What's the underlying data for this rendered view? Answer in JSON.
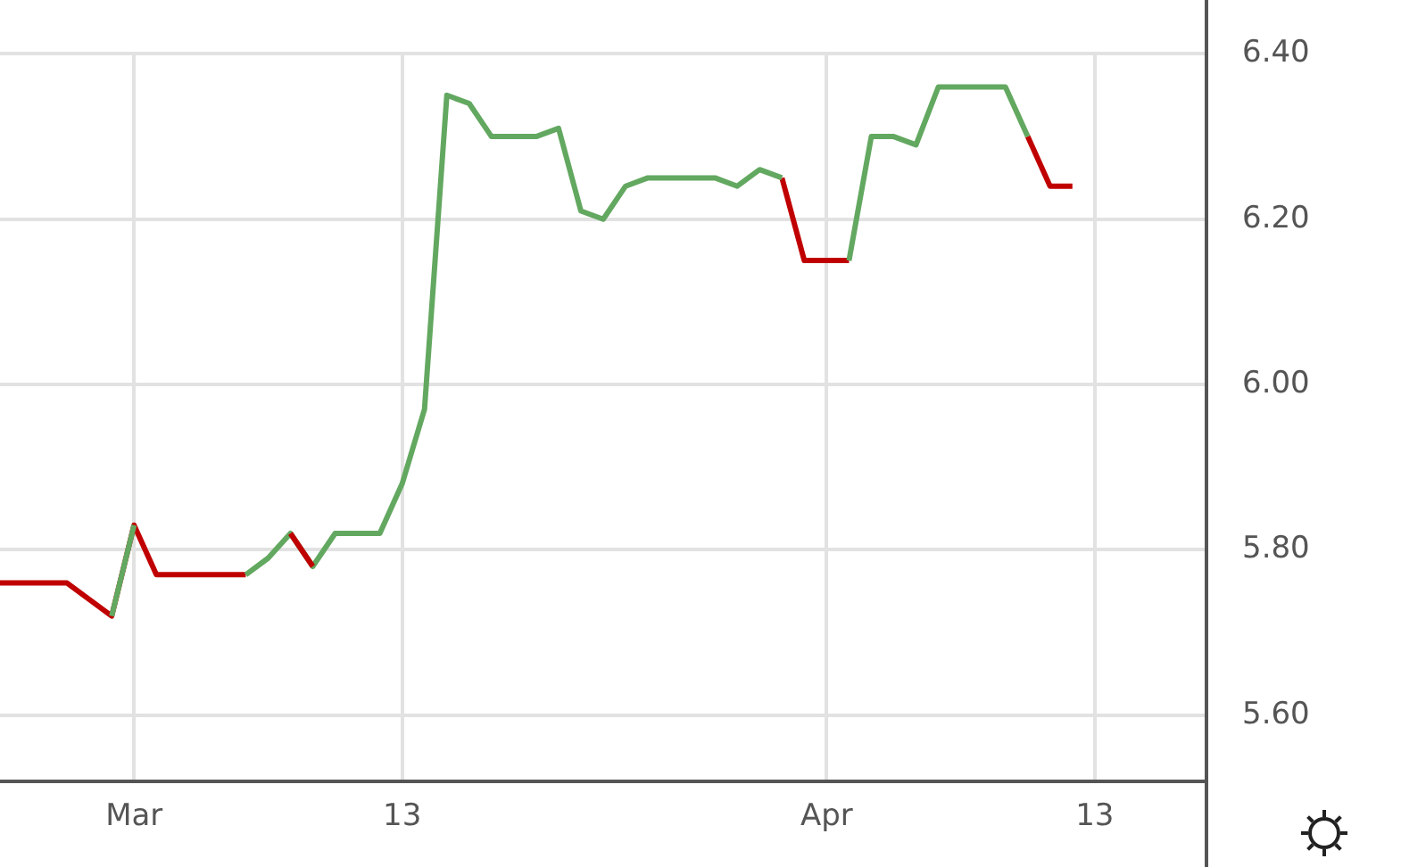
{
  "chart_data": {
    "type": "line",
    "x": [
      "--02-23",
      "--02-24",
      "--02-26",
      "--02-27",
      "--02-28",
      "--03-01",
      "--03-02",
      "--03-03",
      "--03-05",
      "--03-06",
      "--03-07",
      "--03-08",
      "--03-09",
      "--03-10",
      "--03-12",
      "--03-13",
      "--03-14",
      "--03-15",
      "--03-16",
      "--03-17",
      "--03-19",
      "--03-20",
      "--03-21",
      "--03-22",
      "--03-23",
      "--03-24",
      "--03-26",
      "--03-27",
      "--03-28",
      "--03-29",
      "--03-30",
      "--03-31",
      "--04-02",
      "--04-03",
      "--04-04",
      "--04-05",
      "--04-06",
      "--04-09",
      "--04-10",
      "--04-11",
      "--04-12"
    ],
    "series": [
      {
        "color": "#c00000",
        "values": [
          null,
          null,
          null,
          null,
          null,
          null,
          null,
          null,
          null,
          null,
          null,
          5.82,
          5.78,
          null,
          null,
          null,
          null,
          null,
          null,
          null,
          null,
          null,
          null,
          null,
          null,
          null,
          null,
          null,
          null,
          null,
          null,
          null,
          null,
          null,
          null,
          null,
          null,
          null,
          null,
          null,
          null
        ]
      },
      {
        "color": "#63a860",
        "values": [
          null,
          null,
          null,
          null,
          5.72,
          5.83,
          null,
          null,
          null,
          5.77,
          5.79,
          5.82,
          5.78,
          5.82,
          5.82,
          5.88,
          5.97,
          6.35,
          6.34,
          6.3,
          6.3,
          6.31,
          6.21,
          6.2,
          6.24,
          6.25,
          6.25,
          6.25,
          6.24,
          6.26,
          6.25,
          null,
          6.15,
          6.3,
          6.3,
          6.29,
          6.36,
          6.36,
          6.3,
          null,
          null
        ]
      },
      {
        "color": "#c00000",
        "values": [
          5.76,
          5.76,
          5.76,
          5.74,
          5.72,
          5.83,
          5.77,
          5.77,
          5.77,
          5.77,
          null,
          null,
          null,
          null,
          null,
          null,
          null,
          null,
          null,
          null,
          null,
          null,
          null,
          null,
          null,
          null,
          null,
          null,
          null,
          null,
          6.25,
          6.15,
          6.15,
          null,
          null,
          null,
          null,
          null,
          6.3,
          6.24,
          6.24
        ]
      }
    ],
    "xlim": [
      "--02-23",
      "--04-18"
    ],
    "xticks": [
      {
        "value": "--03-01",
        "label": "Mar"
      },
      {
        "value": "--03-13",
        "label": "13"
      },
      {
        "value": "--04-01",
        "label": "Apr"
      },
      {
        "value": "--04-13",
        "label": "13"
      }
    ],
    "ylim": [
      5.52,
      6.4
    ],
    "yticks": [
      {
        "value": 5.6,
        "label": "5.60"
      },
      {
        "value": 5.8,
        "label": "5.80"
      },
      {
        "value": 6.0,
        "label": "6.00"
      },
      {
        "value": 6.2,
        "label": "6.20"
      },
      {
        "value": 6.4,
        "label": "6.40"
      }
    ],
    "grid": true,
    "marker": "none",
    "line_style": "solid"
  }
}
